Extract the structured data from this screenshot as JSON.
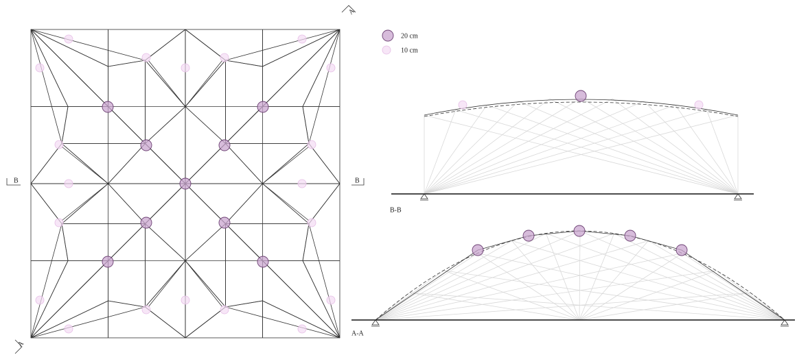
{
  "legend": {
    "large": "20 cm",
    "small": "10 cm"
  },
  "plan": {
    "section_b_left": "B",
    "section_b_right": "B",
    "section_a_top": "A",
    "section_a_bottom": "A"
  },
  "sections": {
    "b": "B-B",
    "a": "A-A"
  }
}
